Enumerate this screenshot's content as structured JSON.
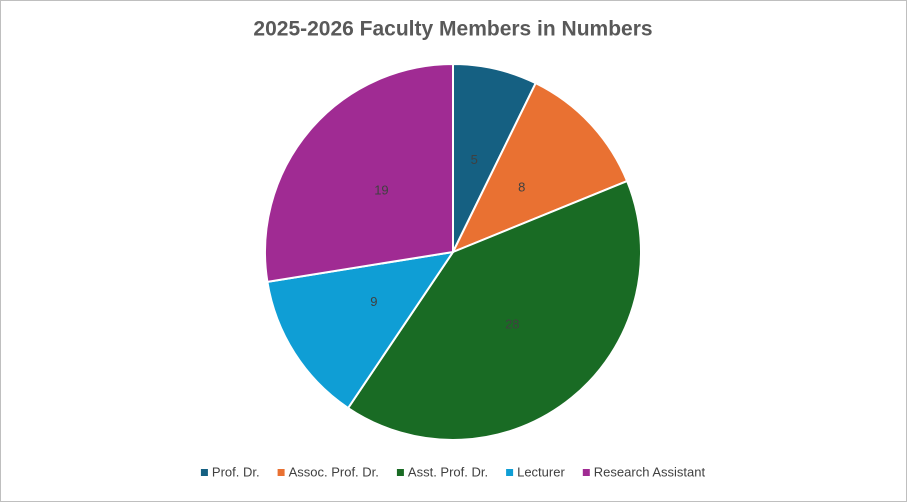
{
  "chart_data": {
    "type": "pie",
    "title": "2025-2026 Faculty Members in Numbers",
    "categories": [
      "Prof. Dr.",
      "Assoc. Prof. Dr.",
      "Asst. Prof. Dr.",
      "Lecturer",
      "Research Assistant"
    ],
    "values": [
      5,
      8,
      28,
      9,
      19
    ],
    "colors": [
      "#156082",
      "#e97132",
      "#196b24",
      "#0f9ed5",
      "#a02b93"
    ],
    "legend": "bottom"
  }
}
